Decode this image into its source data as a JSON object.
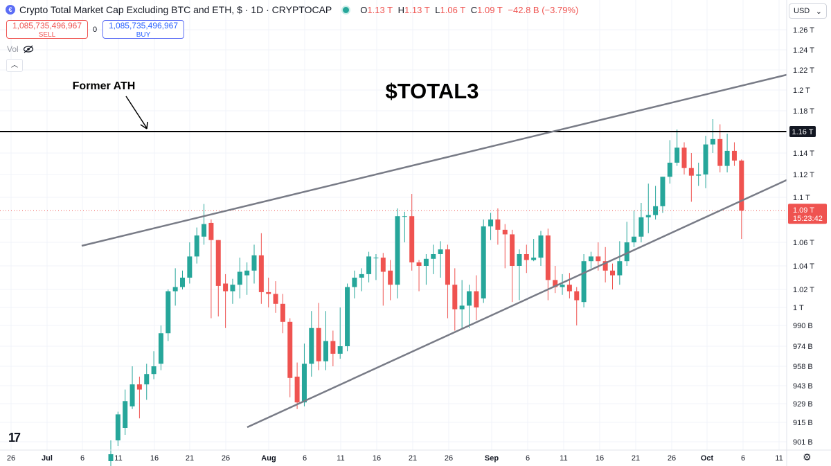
{
  "header": {
    "title": "Crypto Total Market Cap Excluding BTC and ETH, $ · 1D · CRYPTOCAP",
    "open_label": "O",
    "open": "1.13 T",
    "high_label": "H",
    "high": "1.13 T",
    "low_label": "L",
    "low": "1.06 T",
    "close_label": "C",
    "close": "1.09 T",
    "change": "−42.8 B (−3.79%)"
  },
  "trade": {
    "sell_value": "1,085,735,496,967",
    "sell_label": "SELL",
    "buy_value": "1,085,735,496,967",
    "buy_label": "BUY",
    "spread": "0"
  },
  "indicator": {
    "vol_label": "Vol"
  },
  "currency": {
    "label": "USD"
  },
  "annotations": {
    "headline": "$TOTAL3",
    "former_ath_label": "Former ATH"
  },
  "icons": {
    "logo": "cryptocap-logo-icon",
    "visibility": "eye-slash-icon",
    "collapse": "chevron-up-icon",
    "currency_dropdown": "chevron-down-icon",
    "settings": "gear-icon",
    "brand": "tradingview-logo-icon"
  },
  "colors": {
    "up": "#26a69a",
    "down": "#ef5350",
    "trendline": "#787b86",
    "ath_line": "#000000"
  },
  "chart_data": {
    "type": "candlestick",
    "y_ticks": [
      "1.26 T",
      "1.24 T",
      "1.22 T",
      "1.2 T",
      "1.18 T",
      "1.16 T",
      "1.14 T",
      "1.12 T",
      "1.1 T",
      "1.08 T",
      "1.06 T",
      "1.04 T",
      "1.02 T",
      "1 T",
      "990 B",
      "974 B",
      "958 B",
      "943 B",
      "929 B",
      "915 B",
      "901 B"
    ],
    "x_ticks": [
      "26",
      "Jul",
      "6",
      "11",
      "16",
      "21",
      "26",
      "Aug",
      "6",
      "11",
      "16",
      "21",
      "26",
      "Sep",
      "6",
      "11",
      "16",
      "21",
      "26",
      "Oct",
      "6",
      "11"
    ],
    "ath_level": "1.16 T",
    "last_price": "1.09 T",
    "countdown": "15:23:42",
    "candles": [
      [
        0.887,
        0.892,
        0.881,
        0.902
      ],
      [
        0.902,
        0.921,
        0.898,
        0.923
      ],
      [
        0.911,
        0.931,
        0.906,
        0.94
      ],
      [
        0.927,
        0.944,
        0.925,
        0.958
      ],
      [
        0.944,
        0.94,
        0.918,
        0.95
      ],
      [
        0.944,
        0.952,
        0.932,
        0.96
      ],
      [
        0.952,
        0.958,
        0.948,
        0.97
      ],
      [
        0.96,
        0.984,
        0.955,
        0.99
      ],
      [
        0.984,
        1.018,
        0.978,
        1.02
      ],
      [
        1.018,
        1.022,
        1.002,
        1.038
      ],
      [
        1.022,
        1.03,
        1.02,
        1.036
      ],
      [
        1.03,
        1.048,
        1.025,
        1.06
      ],
      [
        1.048,
        1.066,
        1.042,
        1.073
      ],
      [
        1.065,
        1.076,
        1.058,
        1.094
      ],
      [
        1.077,
        1.062,
        0.994,
        1.08
      ],
      [
        1.062,
        1.023,
        0.995,
        1.062
      ],
      [
        1.025,
        1.018,
        0.988,
        1.033
      ],
      [
        1.018,
        1.024,
        1.004,
        1.029
      ],
      [
        1.024,
        1.035,
        1.01,
        1.047
      ],
      [
        1.032,
        1.036,
        1.014,
        1.043
      ],
      [
        1.036,
        1.049,
        1.025,
        1.058
      ],
      [
        1.049,
        1.017,
        1.004,
        1.068
      ],
      [
        1.017,
        1.015,
        1.0,
        1.03
      ],
      [
        1.015,
        1.004,
        0.997,
        1.027
      ],
      [
        1.004,
        0.992,
        0.984,
        1.015
      ],
      [
        0.992,
        0.949,
        0.934,
        0.994
      ],
      [
        0.95,
        0.93,
        0.925,
        0.961
      ],
      [
        0.93,
        0.96,
        0.927,
        0.976
      ],
      [
        0.96,
        0.988,
        0.95,
        0.998
      ],
      [
        0.988,
        0.962,
        0.955,
        1.005
      ],
      [
        0.962,
        0.978,
        0.955,
        0.998
      ],
      [
        0.978,
        0.968,
        0.958,
        0.986
      ],
      [
        0.968,
        0.974,
        0.964,
        1.0
      ],
      [
        0.974,
        1.022,
        0.97,
        1.025
      ],
      [
        1.022,
        1.03,
        1.01,
        1.036
      ],
      [
        1.03,
        1.033,
        1.018,
        1.038
      ],
      [
        1.033,
        1.048,
        1.026,
        1.052
      ],
      [
        1.047,
        1.047,
        1.028,
        1.05
      ],
      [
        1.047,
        1.035,
        1.002,
        1.051
      ],
      [
        1.036,
        1.024,
        1.008,
        1.045
      ],
      [
        1.024,
        1.083,
        1.01,
        1.09
      ],
      [
        1.083,
        1.083,
        1.06,
        1.087
      ],
      [
        1.083,
        1.043,
        1.036,
        1.103
      ],
      [
        1.043,
        1.04,
        1.018,
        1.045
      ],
      [
        1.04,
        1.046,
        1.024,
        1.05
      ],
      [
        1.046,
        1.05,
        1.033,
        1.058
      ],
      [
        1.05,
        1.054,
        1.03,
        1.061
      ],
      [
        1.054,
        1.024,
        0.994,
        1.058
      ],
      [
        1.024,
        0.999,
        0.986,
        1.038
      ],
      [
        0.999,
        1.002,
        0.987,
        1.028
      ],
      [
        1.002,
        1.018,
        0.988,
        1.024
      ],
      [
        1.018,
        1.0,
        0.993,
        1.032
      ],
      [
        1.01,
        1.074,
        1.005,
        1.08
      ],
      [
        1.074,
        1.08,
        1.062,
        1.086
      ],
      [
        1.08,
        1.071,
        1.058,
        1.09
      ],
      [
        1.071,
        1.067,
        1.038,
        1.076
      ],
      [
        1.067,
        1.04,
        1.006,
        1.071
      ],
      [
        1.04,
        1.05,
        1.008,
        1.054
      ],
      [
        1.05,
        1.045,
        1.034,
        1.058
      ],
      [
        1.045,
        1.047,
        1.044,
        1.063
      ],
      [
        1.047,
        1.066,
        1.04,
        1.07
      ],
      [
        1.066,
        1.028,
        1.008,
        1.072
      ],
      [
        1.028,
        1.022,
        1.016,
        1.04
      ],
      [
        1.022,
        1.024,
        1.014,
        1.033
      ],
      [
        1.024,
        1.018,
        1.01,
        1.034
      ],
      [
        1.018,
        1.008,
        0.99,
        1.022
      ],
      [
        1.006,
        1.044,
        1.0,
        1.05
      ],
      [
        1.044,
        1.048,
        1.038,
        1.052
      ],
      [
        1.048,
        1.044,
        1.036,
        1.06
      ],
      [
        1.044,
        1.036,
        1.026,
        1.056
      ],
      [
        1.036,
        1.032,
        1.02,
        1.042
      ],
      [
        1.032,
        1.044,
        1.024,
        1.061
      ],
      [
        1.044,
        1.06,
        1.04,
        1.078
      ],
      [
        1.06,
        1.065,
        1.056,
        1.088
      ],
      [
        1.065,
        1.082,
        1.06,
        1.095
      ],
      [
        1.082,
        1.084,
        1.068,
        1.112
      ],
      [
        1.084,
        1.092,
        1.08,
        1.11
      ],
      [
        1.092,
        1.118,
        1.086,
        1.118
      ],
      [
        1.118,
        1.131,
        1.112,
        1.152
      ],
      [
        1.131,
        1.145,
        1.128,
        1.162
      ],
      [
        1.145,
        1.126,
        1.12,
        1.15
      ],
      [
        1.126,
        1.119,
        1.096,
        1.14
      ],
      [
        1.119,
        1.12,
        1.11,
        1.131
      ],
      [
        1.12,
        1.148,
        1.108,
        1.156
      ],
      [
        1.148,
        1.153,
        1.14,
        1.172
      ],
      [
        1.153,
        1.128,
        1.122,
        1.167
      ],
      [
        1.128,
        1.142,
        1.122,
        1.158
      ],
      [
        1.142,
        1.133,
        1.128,
        1.15
      ],
      [
        1.133,
        1.088,
        1.063,
        1.134
      ]
    ]
  }
}
